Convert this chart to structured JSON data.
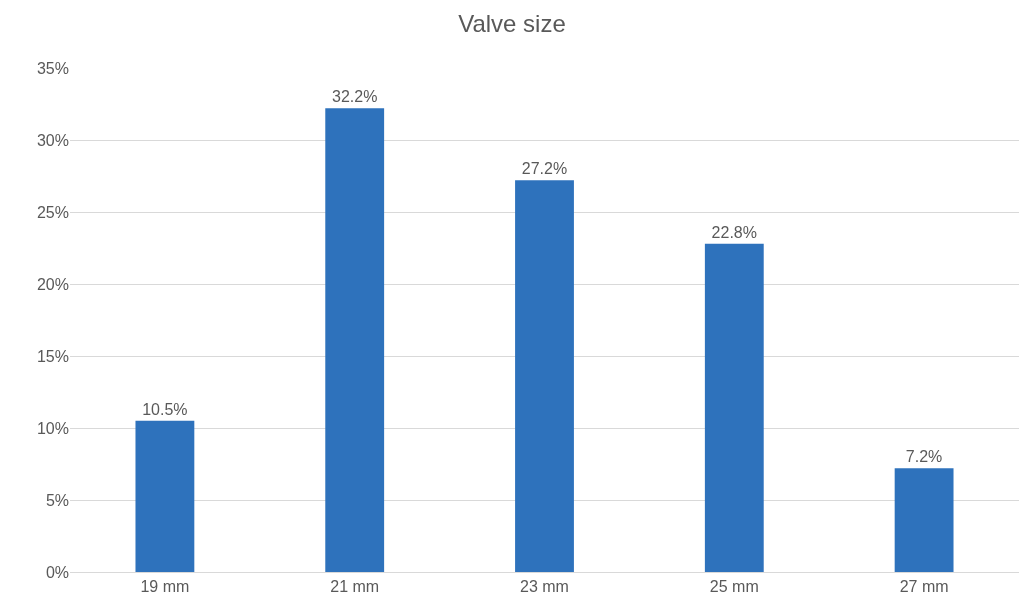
{
  "chart_data": {
    "type": "bar",
    "title": "Valve size",
    "categories": [
      "19 mm",
      "21 mm",
      "23 mm",
      "25 mm",
      "27 mm"
    ],
    "values": [
      10.5,
      32.2,
      27.2,
      22.8,
      7.2
    ],
    "value_labels": [
      "10.5%",
      "32.2%",
      "27.2%",
      "22.8%",
      "7.2%"
    ],
    "color": "#2e72bc",
    "ylim": [
      0,
      35
    ],
    "yticks": [
      {
        "value": 0,
        "label": "0%"
      },
      {
        "value": 5,
        "label": "5%"
      },
      {
        "value": 10,
        "label": "10%"
      },
      {
        "value": 15,
        "label": "15%"
      },
      {
        "value": 20,
        "label": "20%"
      },
      {
        "value": 25,
        "label": "25%"
      },
      {
        "value": 30,
        "label": "30%"
      },
      {
        "value": 35,
        "label": "35%"
      }
    ],
    "grid": "y"
  }
}
